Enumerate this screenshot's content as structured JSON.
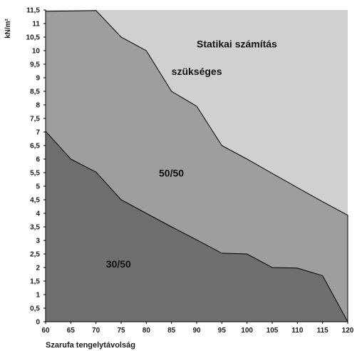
{
  "chart_data": {
    "type": "area",
    "title": "",
    "xlabel": "Szarufa tengelytávolság",
    "ylabel": "kN/m²",
    "xlim": [
      60,
      120
    ],
    "ylim": [
      0,
      11.5
    ],
    "x_ticks": [
      "60",
      "65",
      "70",
      "75",
      "80",
      "85",
      "90",
      "95",
      "100",
      "105",
      "110",
      "115",
      "120"
    ],
    "y_ticks": [
      "0",
      "0,5",
      "1",
      "1,5",
      "2",
      "2,5",
      "3",
      "3,5",
      "4",
      "4,5",
      "5",
      "5,5",
      "6",
      "6,5",
      "7",
      "7,5",
      "8",
      "8,5",
      "9",
      "9,5",
      "10",
      "10,5",
      "11",
      "11,5"
    ],
    "background_color": "#d0d0d0",
    "grid": false,
    "series": [
      {
        "name": "50/50",
        "color": "#9e9e9e",
        "points": [
          [
            60,
            11.45
          ],
          [
            70,
            11.48
          ],
          [
            75,
            10.5
          ],
          [
            80,
            10.0
          ],
          [
            85,
            8.5
          ],
          [
            90,
            7.95
          ],
          [
            95,
            6.5
          ],
          [
            100,
            6.0
          ],
          [
            105,
            5.47
          ],
          [
            110,
            4.95
          ],
          [
            115,
            4.43
          ],
          [
            120,
            3.93
          ]
        ]
      },
      {
        "name": "30/50",
        "color": "#6e6e6e",
        "points": [
          [
            60,
            7.03
          ],
          [
            65,
            6.0
          ],
          [
            70,
            5.52
          ],
          [
            75,
            4.5
          ],
          [
            80,
            4.0
          ],
          [
            85,
            3.5
          ],
          [
            90,
            3.02
          ],
          [
            95,
            2.53
          ],
          [
            100,
            2.5
          ],
          [
            105,
            2.0
          ],
          [
            110,
            1.98
          ],
          [
            115,
            1.7
          ],
          [
            120,
            0.0
          ]
        ]
      }
    ],
    "annotations": [
      {
        "text": "Statikai számítás",
        "x": 90,
        "y": 10.12
      },
      {
        "text": "szükséges",
        "x": 85,
        "y": 9.1
      },
      {
        "text": "50/50",
        "x": 82.5,
        "y": 5.35
      },
      {
        "text": "30/50",
        "x": 72,
        "y": 2.0
      }
    ]
  }
}
